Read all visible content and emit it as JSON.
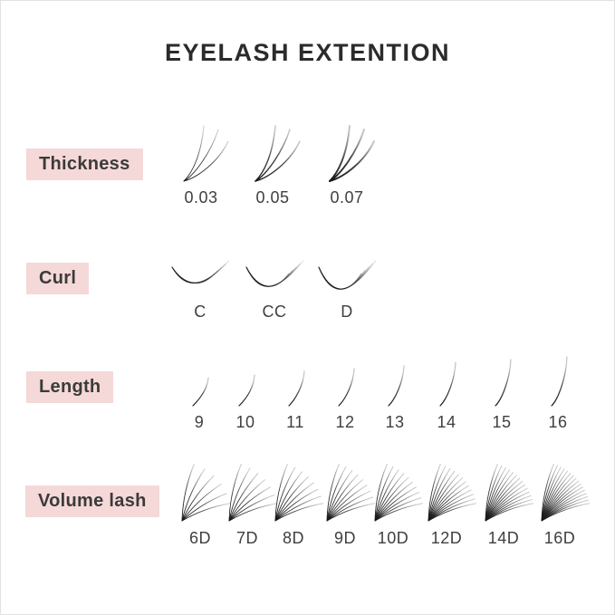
{
  "page": {
    "title": "EYELASH EXTENTION"
  },
  "colors": {
    "background": "#ffffff",
    "border": "#e2e2e2",
    "badge_bg": "#f5d8d8",
    "badge_text": "#3b3b3b",
    "label_text": "#3f3f3f",
    "title_text": "#2b2b2b",
    "lash_dark": "#141414",
    "lash_light": "#c2c2c2"
  },
  "rows": [
    {
      "id": "thickness",
      "label": "Thickness",
      "type": "thickness",
      "items": [
        {
          "label": "0.03"
        },
        {
          "label": "0.05"
        },
        {
          "label": "0.07"
        }
      ]
    },
    {
      "id": "curl",
      "label": "Curl",
      "type": "curl",
      "items": [
        {
          "label": "C"
        },
        {
          "label": "CC"
        },
        {
          "label": "D"
        }
      ]
    },
    {
      "id": "length",
      "label": "Length",
      "type": "length",
      "items": [
        {
          "label": "9"
        },
        {
          "label": "10"
        },
        {
          "label": "11"
        },
        {
          "label": "12"
        },
        {
          "label": "13"
        },
        {
          "label": "14"
        },
        {
          "label": "15"
        },
        {
          "label": "16"
        }
      ]
    },
    {
      "id": "volume",
      "label": "Volume lash",
      "type": "volume",
      "items": [
        {
          "label": "6D"
        },
        {
          "label": "7D"
        },
        {
          "label": "8D"
        },
        {
          "label": "9D"
        },
        {
          "label": "10D"
        },
        {
          "label": "12D"
        },
        {
          "label": "14D"
        },
        {
          "label": "16D"
        }
      ]
    }
  ]
}
